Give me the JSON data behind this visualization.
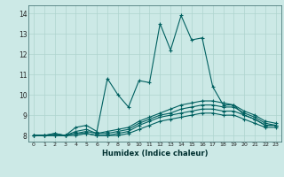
{
  "xlabel": "Humidex (Indice chaleur)",
  "ylabel": "",
  "bg_color": "#cce9e6",
  "line_color": "#006060",
  "grid_color": "#aed4cf",
  "xlim": [
    -0.5,
    23.5
  ],
  "ylim": [
    7.7,
    14.4
  ],
  "xticks": [
    0,
    1,
    2,
    3,
    4,
    5,
    6,
    7,
    8,
    9,
    10,
    11,
    12,
    13,
    14,
    15,
    16,
    17,
    18,
    19,
    20,
    21,
    22,
    23
  ],
  "yticks": [
    8,
    9,
    10,
    11,
    12,
    13,
    14
  ],
  "lines": [
    {
      "x": [
        0,
        1,
        2,
        3,
        4,
        5,
        6,
        7,
        8,
        9,
        10,
        11,
        12,
        13,
        14,
        15,
        16,
        17,
        18,
        19,
        20,
        21,
        22,
        23
      ],
      "y": [
        8.0,
        8.0,
        8.1,
        8.0,
        8.4,
        8.5,
        8.2,
        10.8,
        10.0,
        9.4,
        10.7,
        10.6,
        13.5,
        12.2,
        13.9,
        12.7,
        12.8,
        10.4,
        9.5,
        9.5,
        9.0,
        8.8,
        8.5,
        8.5
      ]
    },
    {
      "x": [
        0,
        1,
        2,
        3,
        4,
        5,
        6,
        7,
        8,
        9,
        10,
        11,
        12,
        13,
        14,
        15,
        16,
        17,
        18,
        19,
        20,
        21,
        22,
        23
      ],
      "y": [
        8.0,
        8.0,
        8.1,
        8.0,
        8.2,
        8.3,
        8.1,
        8.2,
        8.3,
        8.4,
        8.7,
        8.9,
        9.1,
        9.3,
        9.5,
        9.6,
        9.7,
        9.7,
        9.6,
        9.5,
        9.2,
        9.0,
        8.7,
        8.6
      ]
    },
    {
      "x": [
        0,
        1,
        2,
        3,
        4,
        5,
        6,
        7,
        8,
        9,
        10,
        11,
        12,
        13,
        14,
        15,
        16,
        17,
        18,
        19,
        20,
        21,
        22,
        23
      ],
      "y": [
        8.0,
        8.0,
        8.0,
        8.0,
        8.1,
        8.2,
        8.1,
        8.1,
        8.2,
        8.3,
        8.6,
        8.8,
        9.0,
        9.1,
        9.3,
        9.4,
        9.5,
        9.5,
        9.4,
        9.4,
        9.1,
        8.9,
        8.6,
        8.5
      ]
    },
    {
      "x": [
        0,
        1,
        2,
        3,
        4,
        5,
        6,
        7,
        8,
        9,
        10,
        11,
        12,
        13,
        14,
        15,
        16,
        17,
        18,
        19,
        20,
        21,
        22,
        23
      ],
      "y": [
        8.0,
        8.0,
        8.0,
        8.0,
        8.1,
        8.1,
        8.0,
        8.0,
        8.1,
        8.2,
        8.5,
        8.7,
        8.9,
        9.0,
        9.1,
        9.2,
        9.3,
        9.3,
        9.2,
        9.2,
        9.0,
        8.8,
        8.5,
        8.5
      ]
    },
    {
      "x": [
        0,
        1,
        2,
        3,
        4,
        5,
        6,
        7,
        8,
        9,
        10,
        11,
        12,
        13,
        14,
        15,
        16,
        17,
        18,
        19,
        20,
        21,
        22,
        23
      ],
      "y": [
        8.0,
        8.0,
        8.0,
        8.0,
        8.0,
        8.1,
        8.0,
        8.0,
        8.0,
        8.1,
        8.3,
        8.5,
        8.7,
        8.8,
        8.9,
        9.0,
        9.1,
        9.1,
        9.0,
        9.0,
        8.8,
        8.6,
        8.4,
        8.4
      ]
    }
  ]
}
